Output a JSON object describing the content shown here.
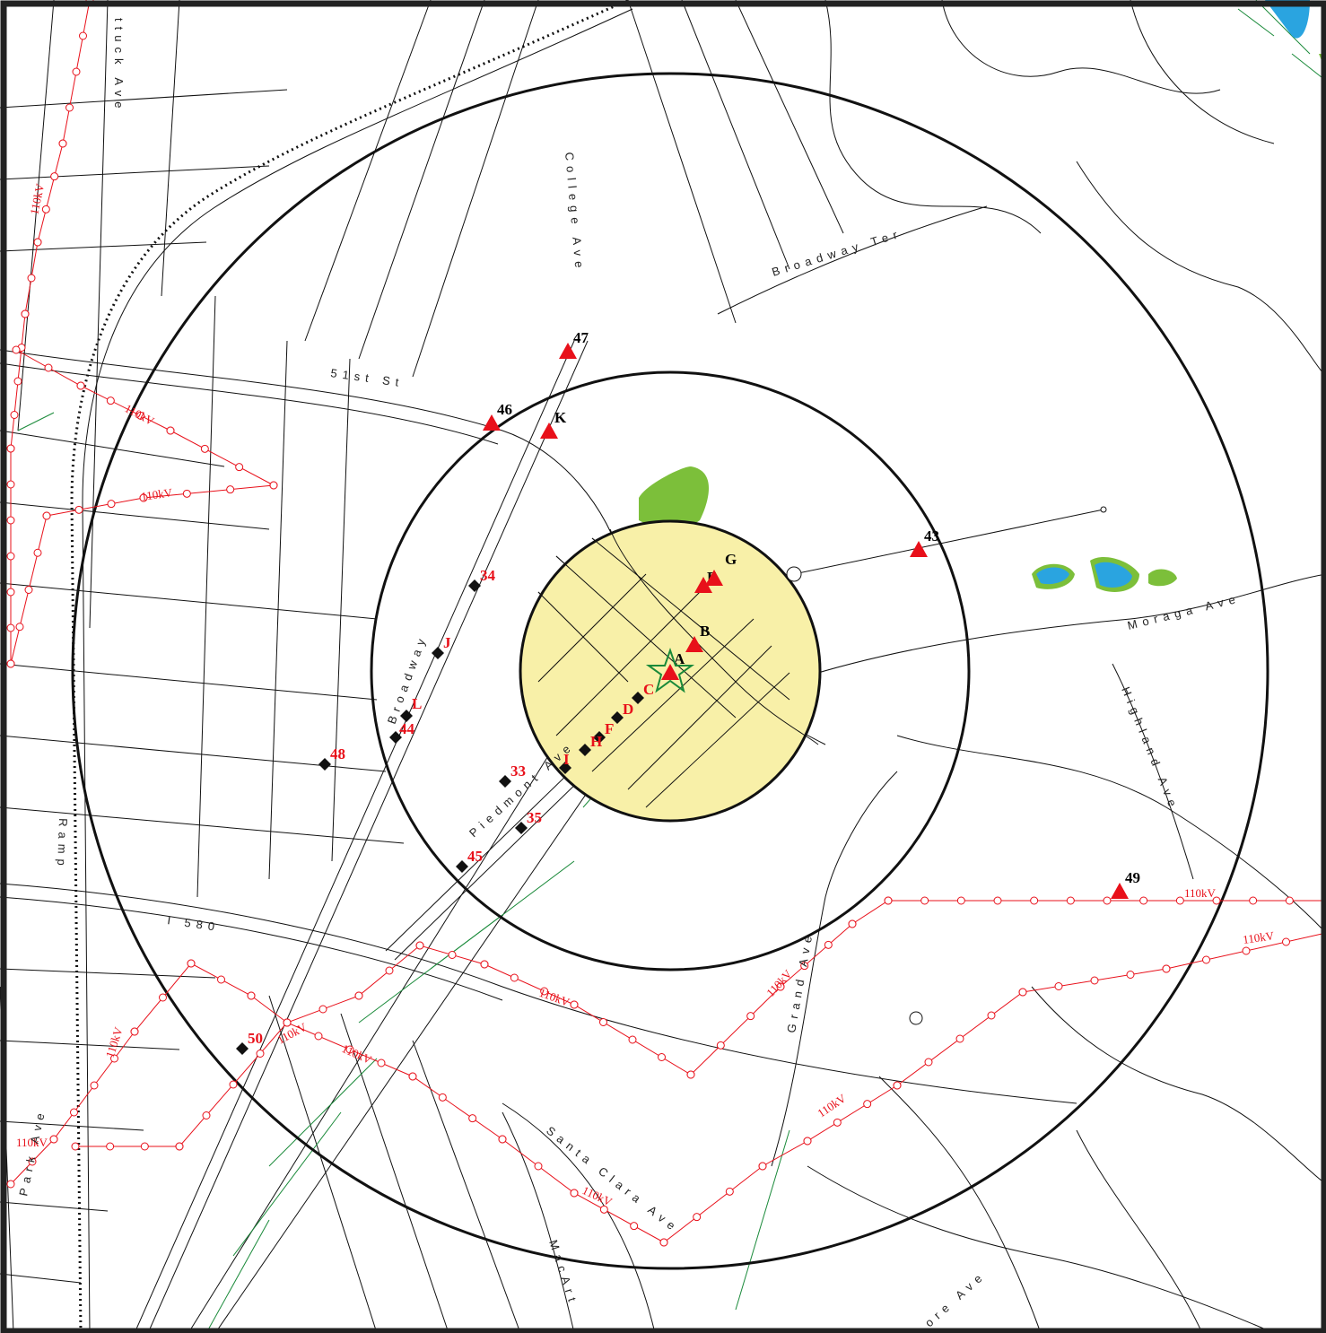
{
  "street_labels": [
    {
      "id": "shattuck",
      "text": "ttuck Ave"
    },
    {
      "id": "college",
      "text": "College Ave"
    },
    {
      "id": "broadway-ter",
      "text": "Broadway Ter"
    },
    {
      "id": "51st",
      "text": "51st St"
    },
    {
      "id": "moraga",
      "text": "Moraga Ave"
    },
    {
      "id": "highland",
      "text": "Highland Ave"
    },
    {
      "id": "broadway",
      "text": "Broadway"
    },
    {
      "id": "piedmont",
      "text": "Piedmont Ave"
    },
    {
      "id": "ramp",
      "text": "Ramp"
    },
    {
      "id": "i580",
      "text": "I 580"
    },
    {
      "id": "grand",
      "text": "Grand Ave"
    },
    {
      "id": "santa-clara",
      "text": "Santa Clara Ave"
    },
    {
      "id": "macart",
      "text": "MacArt"
    },
    {
      "id": "park",
      "text": "Park Ave"
    },
    {
      "id": "lakeshore",
      "text": "ore Ave"
    }
  ],
  "line_labels": {
    "voltage": "110kV"
  },
  "markers": [
    {
      "id": "47",
      "label": "47",
      "kind": "triangle",
      "label_color": "#000000"
    },
    {
      "id": "46",
      "label": "46",
      "kind": "triangle",
      "label_color": "#000000"
    },
    {
      "id": "K",
      "label": "K",
      "kind": "triangle",
      "label_color": "#000000"
    },
    {
      "id": "43",
      "label": "43",
      "kind": "triangle",
      "label_color": "#000000"
    },
    {
      "id": "E",
      "label": "E",
      "kind": "triangle",
      "label_color": "#000000"
    },
    {
      "id": "G",
      "label": "G",
      "kind": "triangle",
      "label_color": "#000000"
    },
    {
      "id": "B",
      "label": "B",
      "kind": "triangle",
      "label_color": "#000000"
    },
    {
      "id": "A",
      "label": "A",
      "kind": "triangle",
      "label_color": "#000000"
    },
    {
      "id": "49",
      "label": "49",
      "kind": "triangle",
      "label_color": "#000000"
    },
    {
      "id": "34",
      "label": "34",
      "kind": "diamond",
      "label_color": "#e8101a"
    },
    {
      "id": "J",
      "label": "J",
      "kind": "diamond",
      "label_color": "#e8101a"
    },
    {
      "id": "L",
      "label": "L",
      "kind": "diamond",
      "label_color": "#e8101a"
    },
    {
      "id": "44",
      "label": "44",
      "kind": "diamond",
      "label_color": "#e8101a"
    },
    {
      "id": "48",
      "label": "48",
      "kind": "diamond",
      "label_color": "#e8101a"
    },
    {
      "id": "C",
      "label": "C",
      "kind": "diamond",
      "label_color": "#e8101a"
    },
    {
      "id": "D",
      "label": "D",
      "kind": "diamond",
      "label_color": "#e8101a"
    },
    {
      "id": "F",
      "label": "F",
      "kind": "diamond",
      "label_color": "#e8101a"
    },
    {
      "id": "H",
      "label": "H",
      "kind": "diamond",
      "label_color": "#e8101a"
    },
    {
      "id": "I",
      "label": "I",
      "kind": "diamond",
      "label_color": "#e8101a"
    },
    {
      "id": "33",
      "label": "33",
      "kind": "diamond",
      "label_color": "#e8101a"
    },
    {
      "id": "35",
      "label": "35",
      "kind": "diamond",
      "label_color": "#e8101a"
    },
    {
      "id": "45",
      "label": "45",
      "kind": "diamond",
      "label_color": "#e8101a"
    },
    {
      "id": "50",
      "label": "50",
      "kind": "diamond",
      "label_color": "#e8101a"
    }
  ],
  "colors": {
    "inner_fill": "#f8f0a8",
    "triangle": "#e8101a",
    "diamond": "#111111",
    "power_line": "#e8101a",
    "water": "#2aa4e0",
    "park": "#7cbf3a",
    "hatch": "#1a8a3a",
    "ring": "#111111"
  }
}
